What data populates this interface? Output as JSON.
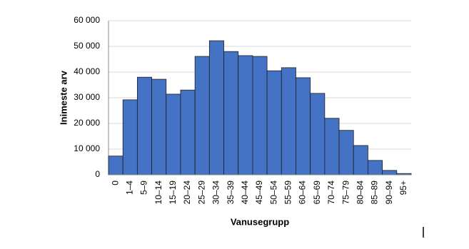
{
  "chart_data": {
    "type": "bar",
    "x_label": "Vanusegrupp",
    "y_label": "Inimeste arv",
    "categories": [
      "0",
      "1–4",
      "5–9",
      "10–14",
      "15–19",
      "20–24",
      "25–29",
      "30–34",
      "35–39",
      "40–44",
      "45–49",
      "50–54",
      "55–59",
      "60–64",
      "65–69",
      "70–74",
      "75–79",
      "80–84",
      "85–89",
      "90–94",
      "95+"
    ],
    "values": [
      7300,
      29200,
      38000,
      37200,
      31400,
      33000,
      46100,
      52200,
      48000,
      46400,
      46100,
      40500,
      41700,
      37800,
      31700,
      22000,
      17300,
      11400,
      5600,
      1700,
      500
    ],
    "color": "#4472c4",
    "ylim": [
      0,
      60000
    ],
    "yticks": [
      0,
      {
        "value": 10000,
        "label": "10 000"
      },
      {
        "value": 20000,
        "label": "20 000"
      },
      {
        "value": 30000,
        "label": "30 000"
      },
      {
        "value": 40000,
        "label": "40 000"
      },
      {
        "value": 50000,
        "label": "50 000"
      },
      {
        "value": 60000,
        "label": "60 000"
      }
    ],
    "grid": true
  }
}
